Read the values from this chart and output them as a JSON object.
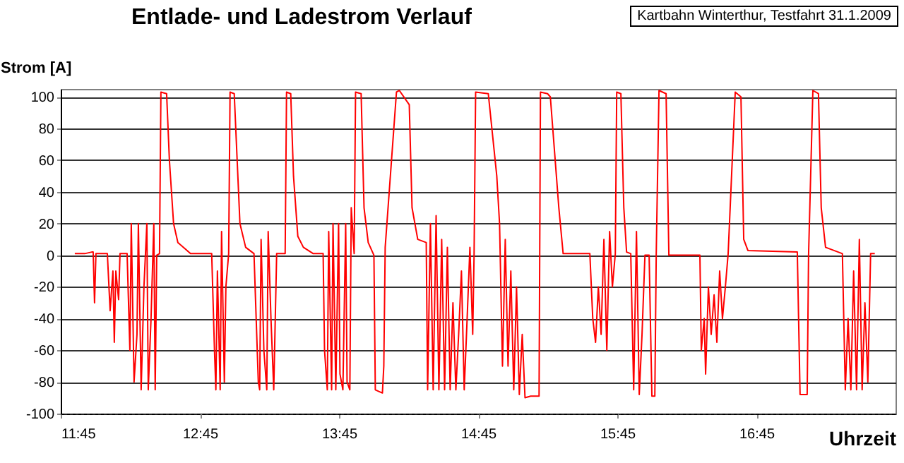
{
  "chart_data": {
    "type": "line",
    "title": "Entlade- und Ladestrom Verlauf",
    "xlabel": "Uhrzeit",
    "ylabel": "Strom [A]",
    "annotations": [
      "Kartbahn Winterthur, Testfahrt 31.1.2009"
    ],
    "xlim": [
      11.75,
      17.75
    ],
    "ylim": [
      -100,
      105
    ],
    "xticks": [
      {
        "value": 11.75,
        "label": "11:45"
      },
      {
        "value": 12.75,
        "label": "12:45"
      },
      {
        "value": 13.75,
        "label": "13:45"
      },
      {
        "value": 14.75,
        "label": "14:45"
      },
      {
        "value": 15.75,
        "label": "15:45"
      },
      {
        "value": 16.75,
        "label": "16:45"
      }
    ],
    "yticks": [
      -100,
      -80,
      -60,
      -40,
      -20,
      0,
      20,
      40,
      60,
      80,
      100
    ],
    "grid": "y",
    "legend": false,
    "marker": "none",
    "line_style": "solid",
    "series": [
      {
        "color": "#ff0000",
        "x": [
          11.851,
          11.922,
          11.973,
          11.983,
          11.993,
          12.003,
          12.085,
          12.105,
          12.125,
          12.135,
          12.146,
          12.166,
          12.176,
          12.227,
          12.247,
          12.257,
          12.277,
          12.298,
          12.308,
          12.328,
          12.348,
          12.369,
          12.379,
          12.399,
          12.419,
          12.429,
          12.44,
          12.46,
          12.47,
          12.511,
          12.531,
          12.561,
          12.592,
          12.632,
          12.683,
          12.835,
          12.855,
          12.865,
          12.876,
          12.896,
          12.906,
          12.926,
          12.937,
          12.957,
          12.967,
          12.997,
          13.018,
          13.038,
          13.079,
          13.139,
          13.17,
          13.18,
          13.19,
          13.21,
          13.231,
          13.241,
          13.261,
          13.281,
          13.302,
          13.363,
          13.373,
          13.403,
          13.423,
          13.454,
          13.494,
          13.565,
          13.636,
          13.646,
          13.666,
          13.676,
          13.697,
          13.707,
          13.727,
          13.747,
          13.757,
          13.778,
          13.798,
          13.808,
          13.828,
          13.838,
          13.859,
          13.869,
          13.909,
          13.93,
          13.96,
          14.001,
          14.011,
          14.062,
          14.072,
          14.082,
          14.163,
          14.184,
          14.255,
          14.275,
          14.316,
          14.377,
          14.387,
          14.407,
          14.427,
          14.448,
          14.468,
          14.488,
          14.509,
          14.529,
          14.549,
          14.569,
          14.59,
          14.61,
          14.63,
          14.65,
          14.671,
          14.691,
          14.711,
          14.721,
          14.732,
          14.823,
          14.884,
          14.904,
          14.925,
          14.945,
          14.965,
          14.985,
          15.006,
          15.026,
          15.046,
          15.067,
          15.087,
          15.128,
          15.188,
          15.198,
          15.249,
          15.269,
          15.33,
          15.361,
          15.553,
          15.574,
          15.594,
          15.614,
          15.634,
          15.654,
          15.675,
          15.695,
          15.715,
          15.736,
          15.746,
          15.776,
          15.797,
          15.817,
          15.847,
          15.868,
          15.888,
          15.908,
          15.928,
          15.949,
          15.979,
          15.999,
          16.02,
          16.03,
          16.05,
          16.101,
          16.121,
          16.344,
          16.354,
          16.375,
          16.385,
          16.405,
          16.425,
          16.446,
          16.466,
          16.486,
          16.506,
          16.527,
          16.547,
          16.598,
          16.639,
          16.659,
          16.689,
          17.044,
          17.064,
          17.115,
          17.125,
          17.156,
          17.196,
          17.216,
          17.247,
          17.368,
          17.389,
          17.409,
          17.429,
          17.449,
          17.47,
          17.49,
          17.51,
          17.53,
          17.551,
          17.571,
          17.601
        ],
        "values": [
          1,
          1,
          2,
          2,
          -30,
          1,
          1,
          -35,
          -10,
          -55,
          -10,
          -28,
          1,
          1,
          -60,
          20,
          -80,
          -50,
          20,
          -85,
          -20,
          20,
          -85,
          -40,
          20,
          -85,
          0,
          1,
          103,
          102,
          60,
          20,
          8,
          5,
          1,
          1,
          -60,
          -85,
          -10,
          -85,
          15,
          -80,
          -20,
          1,
          103,
          102,
          60,
          20,
          5,
          1,
          -80,
          -85,
          10,
          -60,
          -85,
          15,
          -40,
          -85,
          1,
          1,
          103,
          102,
          50,
          12,
          5,
          1,
          1,
          -60,
          -85,
          15,
          -85,
          20,
          -85,
          20,
          -75,
          -85,
          20,
          -80,
          -85,
          30,
          1,
          103,
          102,
          30,
          8,
          0,
          -85,
          -87,
          -70,
          5,
          103,
          104,
          95,
          30,
          10,
          8,
          -85,
          20,
          -85,
          25,
          -85,
          10,
          -85,
          5,
          -85,
          -30,
          -85,
          -50,
          -10,
          -85,
          -40,
          5,
          -50,
          1,
          103,
          102,
          50,
          20,
          -70,
          10,
          -70,
          -10,
          -85,
          -20,
          -88,
          -50,
          -90,
          -89,
          -89,
          103,
          102,
          100,
          30,
          1,
          1,
          -40,
          -55,
          -20,
          -50,
          10,
          -60,
          15,
          -20,
          1,
          103,
          102,
          30,
          2,
          1,
          -85,
          15,
          -88,
          -50,
          0,
          0,
          -89,
          -89,
          0,
          104,
          102,
          0,
          0,
          -60,
          -40,
          -75,
          -20,
          -50,
          -25,
          -55,
          -10,
          -40,
          -20,
          1,
          103,
          100,
          10,
          3,
          2,
          -88,
          -88,
          0,
          104,
          102,
          30,
          5,
          1,
          -85,
          -40,
          -85,
          -10,
          -85,
          10,
          -85,
          -30,
          -80,
          1,
          1
        ]
      }
    ]
  }
}
